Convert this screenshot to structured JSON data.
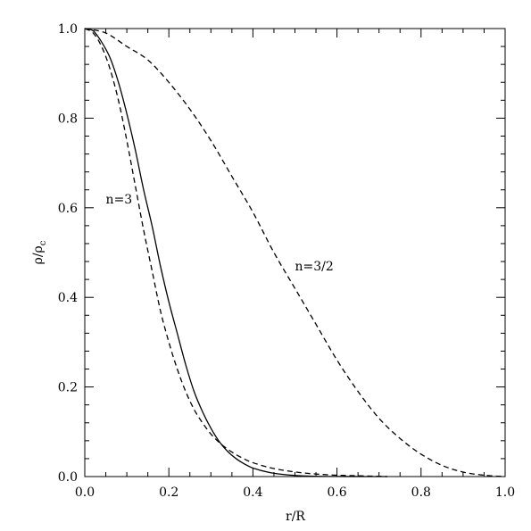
{
  "chart_data": {
    "type": "line",
    "xlabel": "r/R",
    "ylabel": {
      "rho": "ρ",
      "slash": "/",
      "rho2": "ρ",
      "sub": "c"
    },
    "xlim": [
      0.0,
      1.0
    ],
    "ylim": [
      0.0,
      1.0
    ],
    "x_ticks": [
      "0.0",
      "0.2",
      "0.4",
      "0.6",
      "0.8",
      "1.0"
    ],
    "y_ticks": [
      "0.0",
      "0.2",
      "0.4",
      "0.6",
      "0.8",
      "1.0"
    ],
    "grid": false,
    "annotations": [
      {
        "text": "n=3",
        "x": 0.05,
        "y": 0.61
      },
      {
        "text": "n=3/2",
        "x": 0.5,
        "y": 0.46
      }
    ],
    "series": [
      {
        "style": "solid",
        "x": [
          0.0,
          0.02,
          0.04,
          0.06,
          0.08,
          0.1,
          0.12,
          0.14,
          0.16,
          0.18,
          0.2,
          0.22,
          0.24,
          0.26,
          0.28,
          0.3,
          0.32,
          0.34,
          0.36,
          0.38,
          0.4,
          0.44,
          0.48,
          0.52,
          0.56,
          0.6,
          0.64,
          0.68,
          0.72
        ],
        "y": [
          1.0,
          0.995,
          0.97,
          0.935,
          0.88,
          0.81,
          0.73,
          0.64,
          0.56,
          0.47,
          0.39,
          0.32,
          0.25,
          0.19,
          0.145,
          0.108,
          0.078,
          0.056,
          0.04,
          0.028,
          0.019,
          0.009,
          0.004,
          0.0015,
          0.0005,
          0.0002,
          0.0001,
          0.0,
          0.0
        ]
      },
      {
        "style": "dashed",
        "x": [
          0.0,
          0.02,
          0.04,
          0.06,
          0.08,
          0.1,
          0.12,
          0.14,
          0.16,
          0.18,
          0.2,
          0.22,
          0.24,
          0.26,
          0.28,
          0.3,
          0.32,
          0.34,
          0.36,
          0.38,
          0.4,
          0.44,
          0.48,
          0.52,
          0.56,
          0.6,
          0.64,
          0.68,
          0.72
        ],
        "y": [
          1.0,
          0.99,
          0.96,
          0.91,
          0.84,
          0.75,
          0.65,
          0.55,
          0.46,
          0.37,
          0.3,
          0.24,
          0.19,
          0.15,
          0.12,
          0.095,
          0.076,
          0.061,
          0.049,
          0.039,
          0.031,
          0.02,
          0.013,
          0.008,
          0.005,
          0.003,
          0.002,
          0.001,
          0.0
        ]
      },
      {
        "style": "dashed",
        "x": [
          0.0,
          0.05,
          0.1,
          0.15,
          0.2,
          0.25,
          0.3,
          0.35,
          0.4,
          0.45,
          0.5,
          0.55,
          0.6,
          0.65,
          0.7,
          0.75,
          0.8,
          0.85,
          0.9,
          0.95,
          1.0
        ],
        "y": [
          1.0,
          0.99,
          0.96,
          0.93,
          0.88,
          0.82,
          0.75,
          0.67,
          0.59,
          0.5,
          0.42,
          0.34,
          0.26,
          0.19,
          0.13,
          0.085,
          0.05,
          0.025,
          0.01,
          0.003,
          0.0
        ]
      }
    ]
  }
}
